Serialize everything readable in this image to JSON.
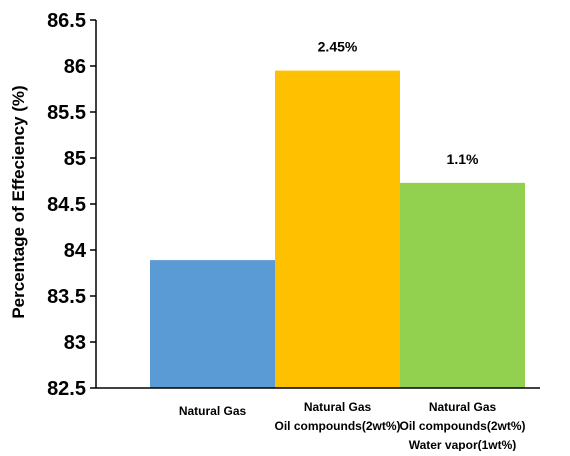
{
  "chart_data": {
    "type": "bar",
    "title": "",
    "xlabel": "",
    "ylabel": "Percentage of Effeciency (%)",
    "categories": [
      [
        "Natural Gas"
      ],
      [
        "Natural Gas",
        "Oil compounds(2wt%)"
      ],
      [
        "Natural Gas",
        "Oil compounds(2wt%)",
        "Water vapor(1wt%)"
      ]
    ],
    "values": [
      83.89,
      85.95,
      84.73
    ],
    "data_labels": [
      "",
      "2.45%",
      "1.1%"
    ],
    "bar_colors": [
      "#5B9BD5",
      "#FFC000",
      "#92D050"
    ],
    "ylim": [
      82.5,
      86.5
    ],
    "yticks": [
      82.5,
      83,
      83.5,
      84,
      84.5,
      85,
      85.5,
      86,
      86.5
    ],
    "ytick_labels": [
      "82.5",
      "83",
      "83.5",
      "84",
      "84.5",
      "85",
      "85.5",
      "86",
      "86.5"
    ],
    "grid": false,
    "legend": "none"
  }
}
